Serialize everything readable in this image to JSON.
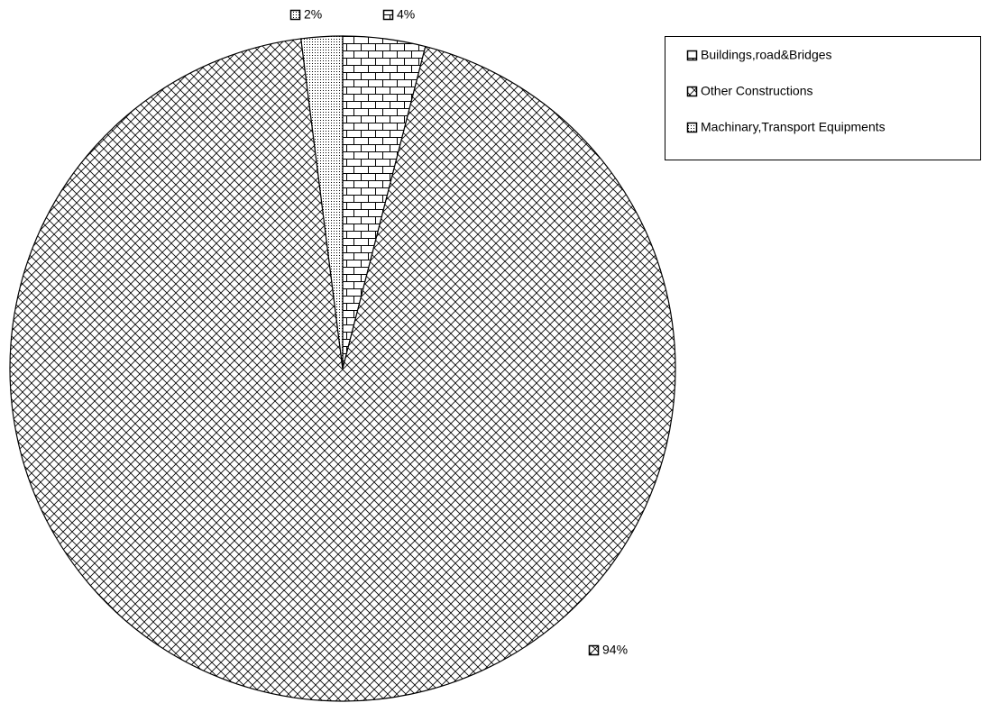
{
  "chart_data": {
    "type": "pie",
    "categories": [
      "Buildings,road&Bridges",
      "Other Constructions",
      "Machinary,Transport Equipments"
    ],
    "values": [
      4,
      94,
      2
    ],
    "value_labels": [
      "4%",
      "94%",
      "2%"
    ],
    "colors": [
      "#000000",
      "#000000",
      "#000000"
    ],
    "legend": "top-right"
  }
}
